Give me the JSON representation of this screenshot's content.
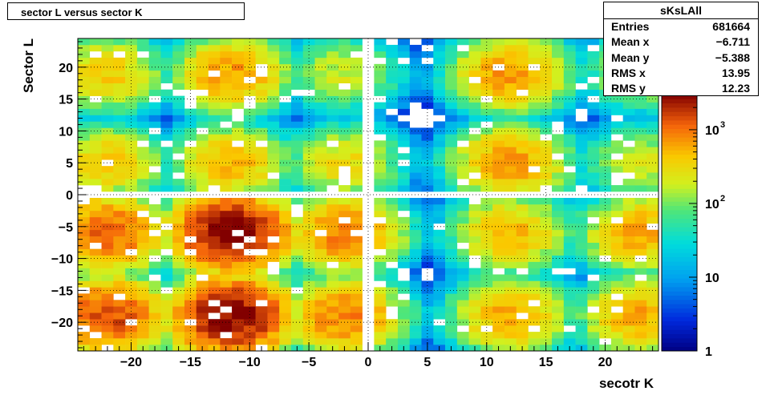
{
  "title": "sector L versus sector K",
  "stats_box": {
    "name": "sKsLAll",
    "rows": [
      {
        "label": "Entries",
        "value": "681664"
      },
      {
        "label": "Mean x",
        "value": "−6.711"
      },
      {
        "label": "Mean y",
        "value": "−5.388"
      },
      {
        "label": "RMS x",
        "value": "13.95"
      },
      {
        "label": "RMS y",
        "value": "12.23"
      }
    ]
  },
  "chart_data": {
    "type": "heatmap",
    "title": "sector L versus sector K",
    "xlabel": "secotr K",
    "ylabel": "Sector L",
    "xlim": [
      -24.5,
      24.5
    ],
    "ylim": [
      -24.5,
      24.5
    ],
    "x_ticks": [
      -20,
      -15,
      -10,
      -5,
      0,
      5,
      10,
      15,
      20
    ],
    "x_tick_labels": [
      "−20",
      "−15",
      "−10",
      "−5",
      "0",
      "5",
      "10",
      "15",
      "20"
    ],
    "y_ticks": [
      -20,
      -15,
      -10,
      -5,
      0,
      5,
      10,
      15,
      20
    ],
    "y_tick_labels": [
      "−20",
      "−15",
      "−10",
      "−5",
      "0",
      "5",
      "10",
      "15",
      "20"
    ],
    "color_scale": "log",
    "z_range": [
      1,
      3000
    ],
    "z_ticks": [
      {
        "value": 1,
        "label": "1"
      },
      {
        "value": 10,
        "label": "10"
      },
      {
        "value": 100,
        "label": "10",
        "sup": "2"
      },
      {
        "value": 1000,
        "label": "10",
        "sup": "3"
      }
    ],
    "grid": true,
    "blocks": [
      {
        "x_center": -22,
        "y_center": 19,
        "peak": 400
      },
      {
        "x_center": -11.5,
        "y_center": 19,
        "peak": 700
      },
      {
        "x_center": -2,
        "y_center": 19,
        "peak": 200
      },
      {
        "x_center": 12,
        "y_center": 19,
        "peak": 700
      },
      {
        "x_center": 23,
        "y_center": 19,
        "peak": 200
      },
      {
        "x_center": -22,
        "y_center": 5,
        "peak": 400
      },
      {
        "x_center": -11.5,
        "y_center": 5,
        "peak": 500
      },
      {
        "x_center": -2,
        "y_center": 5,
        "peak": 300
      },
      {
        "x_center": 12,
        "y_center": 5,
        "peak": 700
      },
      {
        "x_center": 23,
        "y_center": 5,
        "peak": 200
      },
      {
        "x_center": -22,
        "y_center": -6,
        "peak": 1200
      },
      {
        "x_center": -11.5,
        "y_center": -6,
        "peak": 3000
      },
      {
        "x_center": -2,
        "y_center": -6,
        "peak": 900
      },
      {
        "x_center": 12,
        "y_center": -6,
        "peak": 500
      },
      {
        "x_center": 23,
        "y_center": -6,
        "peak": 600
      },
      {
        "x_center": -22,
        "y_center": -19,
        "peak": 1500
      },
      {
        "x_center": -11.5,
        "y_center": -19,
        "peak": 3000
      },
      {
        "x_center": -2,
        "y_center": -19,
        "peak": 900
      },
      {
        "x_center": 12,
        "y_center": -19,
        "peak": 600
      },
      {
        "x_center": 23,
        "y_center": -19,
        "peak": 600
      }
    ]
  }
}
